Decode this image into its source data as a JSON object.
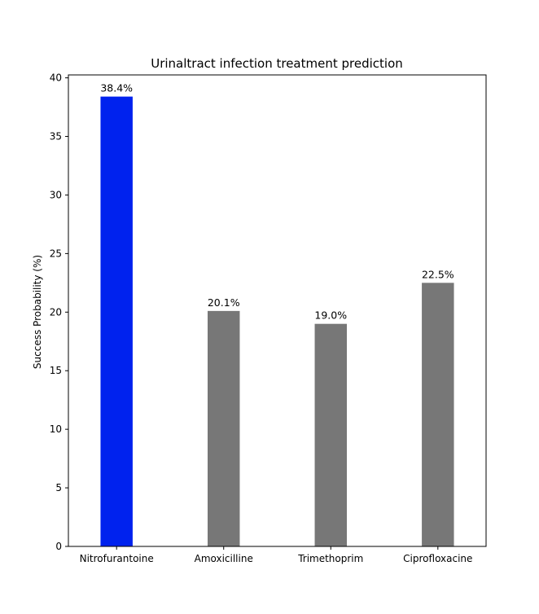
{
  "chart_data": {
    "type": "bar",
    "title": "Urinaltract infection treatment prediction",
    "xlabel": "",
    "ylabel": "Success Probability (%)",
    "categories": [
      "Nitrofurantoine",
      "Amoxicilline",
      "Trimethoprim",
      "Ciprofloxacine"
    ],
    "values": [
      38.4,
      20.1,
      19.0,
      22.5
    ],
    "value_labels": [
      "38.4%",
      "20.1%",
      "19.0%",
      "22.5%"
    ],
    "bar_colors": [
      "#0022ee",
      "#777777",
      "#777777",
      "#777777"
    ],
    "ylim": [
      0,
      40.25
    ],
    "yticks": [
      0,
      5,
      10,
      15,
      20,
      25,
      30,
      35,
      40
    ],
    "ytick_labels": [
      "0",
      "5",
      "10",
      "15",
      "20",
      "25",
      "30",
      "35",
      "40"
    ],
    "grid": false,
    "legend": "none"
  }
}
